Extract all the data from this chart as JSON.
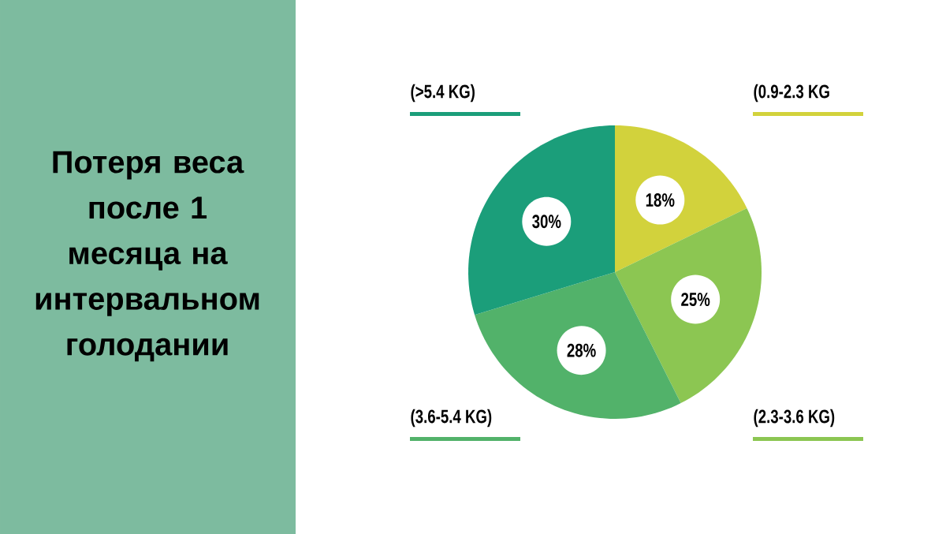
{
  "chart_data": {
    "type": "pie",
    "title": "Потеря веса после 1 месяца на интервальном голодании",
    "categories": [
      "(0.9-2.3 KG",
      "(2.3-3.6 KG)",
      "(3.6-5.4 KG)",
      "(>5.4 KG)"
    ],
    "values": [
      18,
      25,
      28,
      30
    ],
    "value_labels": [
      "18%",
      "25%",
      "28%",
      "30%"
    ],
    "colors": [
      "#d2d23c",
      "#8cc652",
      "#52b26a",
      "#1b9e7a"
    ]
  }
}
